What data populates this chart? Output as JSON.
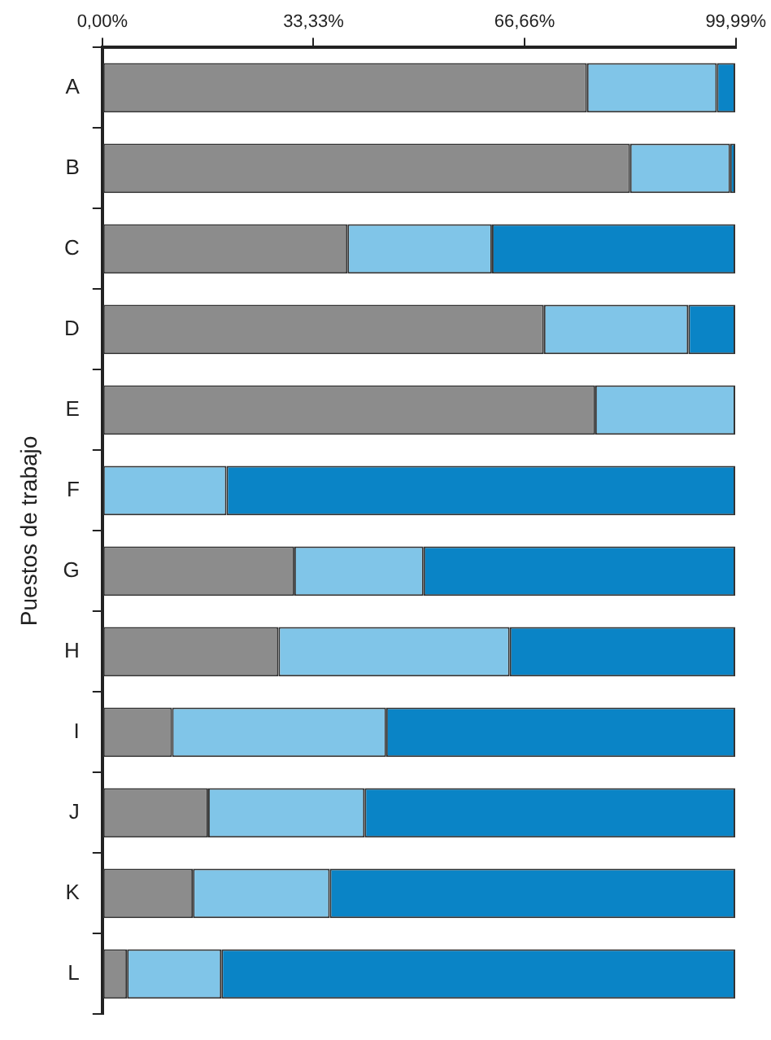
{
  "chart_data": {
    "type": "bar",
    "orientation": "horizontal",
    "stacked": true,
    "ylabel": "Puestos de trabajo",
    "categories": [
      "A",
      "B",
      "C",
      "D",
      "E",
      "F",
      "G",
      "H",
      "I",
      "J",
      "K",
      "L"
    ],
    "series": [
      {
        "color": "#8c8c8c",
        "values": [
          76.5,
          83.3,
          38.7,
          69.7,
          77.8,
          0,
          30.3,
          27.8,
          11.0,
          16.7,
          14.3,
          3.9
        ]
      },
      {
        "color": "#80c5e8",
        "values": [
          20.5,
          15.8,
          22.8,
          22.8,
          22.1,
          19.6,
          20.4,
          36.5,
          33.8,
          24.7,
          21.6,
          14.9
        ]
      },
      {
        "color": "#0a84c6",
        "values": [
          2.9,
          0.8,
          38.4,
          7.4,
          0,
          80.3,
          49.2,
          35.6,
          55.1,
          58.5,
          64.0,
          81.1
        ]
      }
    ],
    "xlim": [
      0,
      99.99
    ],
    "xticks": [
      {
        "value": 0,
        "label": "0,00%"
      },
      {
        "value": 33.33,
        "label": "33,33%"
      },
      {
        "value": 66.66,
        "label": "66,66%"
      },
      {
        "value": 99.99,
        "label": "99,99%"
      }
    ],
    "grid": false,
    "legend": false
  }
}
